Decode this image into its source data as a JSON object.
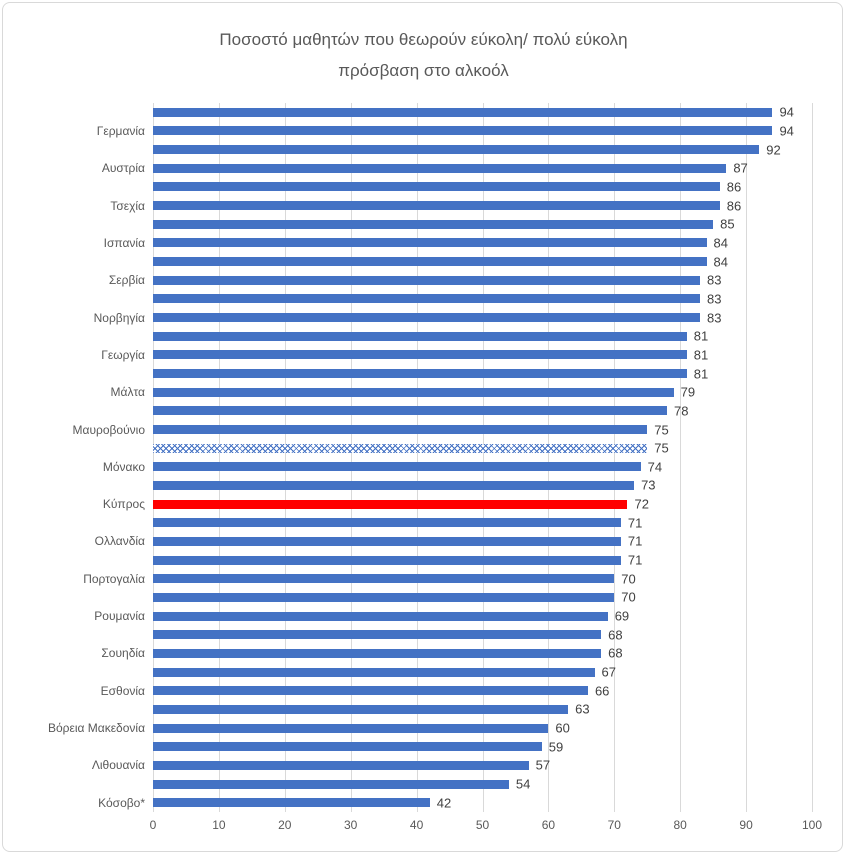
{
  "chart": {
    "title_line1": "Ποσοστό μαθητών που θεωρούν εύκολη/ πολύ εύκολη",
    "title_line2": "πρόσβαση στο αλκοόλ"
  },
  "chart_data": {
    "type": "bar",
    "orientation": "horizontal",
    "title": "Ποσοστό μαθητών που θεωρούν εύκολη/ πολύ εύκολη πρόσβαση στο αλκοόλ",
    "xlabel": "",
    "ylabel": "",
    "xlim": [
      0,
      100
    ],
    "xticks": [
      0,
      10,
      20,
      30,
      40,
      50,
      60,
      70,
      80,
      90,
      100
    ],
    "grid": true,
    "legend": "none",
    "colors": {
      "bar": "#4472C4",
      "highlight": "#FF0000",
      "gridline": "#D9D9D9",
      "axis_text": "#595959",
      "value_text": "#404040",
      "title_text": "#595959"
    },
    "bars": [
      {
        "label": "",
        "value": 94,
        "style": "normal"
      },
      {
        "label": "Γερμανία",
        "value": 94,
        "style": "normal"
      },
      {
        "label": "",
        "value": 92,
        "style": "normal"
      },
      {
        "label": "Αυστρία",
        "value": 87,
        "style": "normal"
      },
      {
        "label": "",
        "value": 86,
        "style": "normal"
      },
      {
        "label": "Τσεχία",
        "value": 86,
        "style": "normal"
      },
      {
        "label": "",
        "value": 85,
        "style": "normal"
      },
      {
        "label": "Ισπανία",
        "value": 84,
        "style": "normal"
      },
      {
        "label": "",
        "value": 84,
        "style": "normal"
      },
      {
        "label": "Σερβία",
        "value": 83,
        "style": "normal"
      },
      {
        "label": "",
        "value": 83,
        "style": "normal"
      },
      {
        "label": "Νορβηγία",
        "value": 83,
        "style": "normal"
      },
      {
        "label": "",
        "value": 81,
        "style": "normal"
      },
      {
        "label": "Γεωργία",
        "value": 81,
        "style": "normal"
      },
      {
        "label": "",
        "value": 81,
        "style": "normal"
      },
      {
        "label": "Μάλτα",
        "value": 79,
        "style": "normal"
      },
      {
        "label": "",
        "value": 78,
        "style": "normal"
      },
      {
        "label": "Μαυροβούνιο",
        "value": 75,
        "style": "normal"
      },
      {
        "label": "",
        "value": 75,
        "style": "pattern"
      },
      {
        "label": "Μόνακο",
        "value": 74,
        "style": "normal"
      },
      {
        "label": "",
        "value": 73,
        "style": "normal"
      },
      {
        "label": "Κύπρος",
        "value": 72,
        "style": "highlight"
      },
      {
        "label": "",
        "value": 71,
        "style": "normal"
      },
      {
        "label": "Ολλανδία",
        "value": 71,
        "style": "normal"
      },
      {
        "label": "",
        "value": 71,
        "style": "normal"
      },
      {
        "label": "Πορτογαλία",
        "value": 70,
        "style": "normal"
      },
      {
        "label": "",
        "value": 70,
        "style": "normal"
      },
      {
        "label": "Ρουμανία",
        "value": 69,
        "style": "normal"
      },
      {
        "label": "",
        "value": 68,
        "style": "normal"
      },
      {
        "label": "Σουηδία",
        "value": 68,
        "style": "normal"
      },
      {
        "label": "",
        "value": 67,
        "style": "normal"
      },
      {
        "label": "Εσθονία",
        "value": 66,
        "style": "normal"
      },
      {
        "label": "",
        "value": 63,
        "style": "normal"
      },
      {
        "label": "Βόρεια Μακεδονία",
        "value": 60,
        "style": "normal"
      },
      {
        "label": "",
        "value": 59,
        "style": "normal"
      },
      {
        "label": "Λιθουανία",
        "value": 57,
        "style": "normal"
      },
      {
        "label": "",
        "value": 54,
        "style": "normal"
      },
      {
        "label": "Κόσοβο*",
        "value": 42,
        "style": "normal"
      }
    ]
  }
}
